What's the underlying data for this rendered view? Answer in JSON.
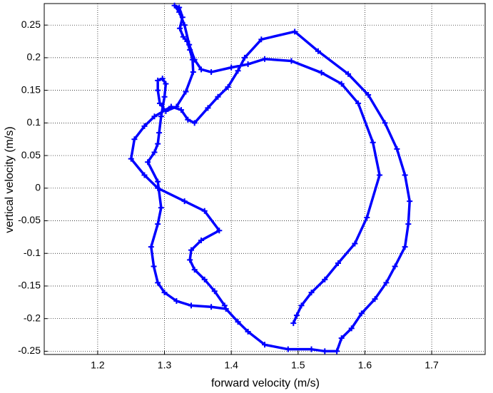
{
  "chart_data": {
    "type": "line",
    "xlabel": "forward velocity (m/s)",
    "ylabel": "vertical velocity (m/s)",
    "xlim": [
      1.12,
      1.78
    ],
    "ylim": [
      -0.255,
      0.283
    ],
    "xticks": [
      1.2,
      1.3,
      1.4,
      1.5,
      1.6,
      1.7
    ],
    "yticks": [
      -0.25,
      -0.2,
      -0.15,
      -0.1,
      -0.05,
      0,
      0.05,
      0.1,
      0.15,
      0.2,
      0.25
    ],
    "grid": true,
    "series": [
      {
        "color": "#0000ff",
        "x": [
          1.493,
          1.498,
          1.505,
          1.52,
          1.54,
          1.56,
          1.585,
          1.603,
          1.622,
          1.612,
          1.59,
          1.565,
          1.535,
          1.49,
          1.45,
          1.425,
          1.4,
          1.37,
          1.355,
          1.345,
          1.337,
          1.33,
          1.322,
          1.315,
          1.322,
          1.327,
          1.323,
          1.328,
          1.334,
          1.338,
          1.342,
          1.343,
          1.332,
          1.318,
          1.302,
          1.293,
          1.29,
          1.29,
          1.297,
          1.302,
          1.3,
          1.295,
          1.292,
          1.29,
          1.285,
          1.275,
          1.29,
          1.295,
          1.29,
          1.28,
          1.284,
          1.29,
          1.3,
          1.318,
          1.34,
          1.37,
          1.392,
          1.41,
          1.425,
          1.45,
          1.485,
          1.52,
          1.54,
          1.558,
          1.565,
          1.58,
          1.595,
          1.615,
          1.632,
          1.645,
          1.66,
          1.665,
          1.667,
          1.66,
          1.648,
          1.63,
          1.605,
          1.575,
          1.53,
          1.495,
          1.445,
          1.42,
          1.41,
          1.395,
          1.38,
          1.365,
          1.345,
          1.335,
          1.325,
          1.31,
          1.285,
          1.27,
          1.255,
          1.25,
          1.27,
          1.29,
          1.33,
          1.36,
          1.382,
          1.355,
          1.34,
          1.338,
          1.345,
          1.36,
          1.375,
          1.39
        ],
        "values": [
          -0.207,
          -0.195,
          -0.18,
          -0.16,
          -0.14,
          -0.115,
          -0.085,
          -0.045,
          0.02,
          0.07,
          0.13,
          0.16,
          0.177,
          0.195,
          0.198,
          0.19,
          0.185,
          0.178,
          0.182,
          0.197,
          0.22,
          0.25,
          0.27,
          0.28,
          0.277,
          0.262,
          0.245,
          0.232,
          0.225,
          0.212,
          0.197,
          0.178,
          0.148,
          0.125,
          0.118,
          0.13,
          0.15,
          0.165,
          0.168,
          0.16,
          0.14,
          0.11,
          0.085,
          0.068,
          0.055,
          0.04,
          0.01,
          -0.03,
          -0.055,
          -0.09,
          -0.12,
          -0.145,
          -0.16,
          -0.173,
          -0.18,
          -0.182,
          -0.185,
          -0.205,
          -0.22,
          -0.24,
          -0.247,
          -0.247,
          -0.25,
          -0.25,
          -0.23,
          -0.215,
          -0.192,
          -0.17,
          -0.145,
          -0.12,
          -0.09,
          -0.055,
          -0.02,
          0.02,
          0.06,
          0.1,
          0.143,
          0.175,
          0.21,
          0.24,
          0.228,
          0.2,
          0.18,
          0.155,
          0.14,
          0.123,
          0.1,
          0.105,
          0.12,
          0.125,
          0.11,
          0.095,
          0.075,
          0.045,
          0.02,
          0,
          -0.02,
          -0.035,
          -0.065,
          -0.08,
          -0.095,
          -0.11,
          -0.125,
          -0.14,
          -0.158,
          -0.18
        ]
      }
    ]
  }
}
